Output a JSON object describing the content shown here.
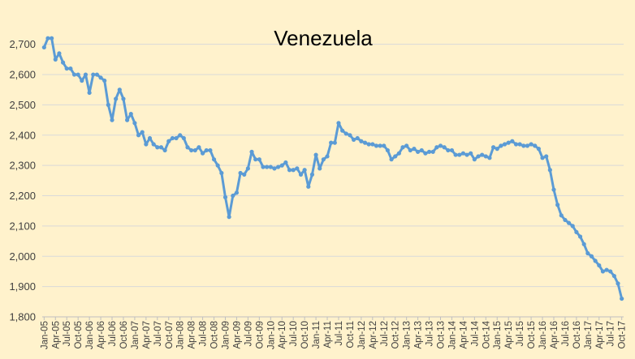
{
  "chart_data": {
    "type": "line",
    "title": "Venezuela",
    "xlabel": "",
    "ylabel": "",
    "ylim": [
      1800,
      2750
    ],
    "yticks": [
      1800,
      1900,
      2000,
      2100,
      2200,
      2300,
      2400,
      2500,
      2600,
      2700
    ],
    "ytick_labels": [
      "1,800",
      "1,900",
      "2,000",
      "2,100",
      "2,200",
      "2,300",
      "2,400",
      "2,500",
      "2,600",
      "2,700"
    ],
    "grid": "horizontal",
    "legend": "none",
    "color": "#5B9BD5",
    "marker": "circle",
    "xtick_labels": [
      "Jan-05",
      "Apr-05",
      "Jul-05",
      "Oct-05",
      "Jan-06",
      "Apr-06",
      "Jul-06",
      "Oct-06",
      "Jan-07",
      "Apr-07",
      "Jul-07",
      "Oct-07",
      "Jan-08",
      "Apr-08",
      "Jul-08",
      "Oct-08",
      "Jan-09",
      "Apr-09",
      "Jul-09",
      "Oct-09",
      "Jan-10",
      "Apr-10",
      "Jul-10",
      "Oct-10",
      "Jan-11",
      "Apr-11",
      "Jul-11",
      "Oct-11",
      "Jan-12",
      "Apr-12",
      "Jul-12",
      "Oct-12",
      "Jan-13",
      "Apr-13",
      "Jul-13",
      "Oct-13",
      "Jan-14",
      "Apr-14",
      "Jul-14",
      "Oct-14",
      "Jan-15",
      "Apr-15",
      "Jul-15",
      "Oct-15",
      "Jan-16",
      "Apr-16",
      "Jul-16",
      "Oct-16",
      "Jan-17",
      "Apr-17",
      "Jul-17",
      "Oct-17"
    ],
    "x_start": "2005-01",
    "x_end": "2017-10",
    "series": [
      {
        "values": [
          2690,
          2720,
          2720,
          2650,
          2670,
          2640,
          2620,
          2620,
          2600,
          2600,
          2580,
          2600,
          2540,
          2600,
          2600,
          2590,
          2580,
          2500,
          2450,
          2520,
          2550,
          2520,
          2450,
          2470,
          2440,
          2400,
          2410,
          2370,
          2390,
          2370,
          2360,
          2360,
          2350,
          2380,
          2390,
          2390,
          2400,
          2390,
          2360,
          2350,
          2350,
          2360,
          2340,
          2350,
          2350,
          2320,
          2300,
          2275,
          2195,
          2130,
          2200,
          2210,
          2275,
          2270,
          2290,
          2345,
          2320,
          2320,
          2295,
          2295,
          2295,
          2290,
          2295,
          2300,
          2310,
          2285,
          2285,
          2290,
          2270,
          2285,
          2230,
          2270,
          2335,
          2290,
          2320,
          2330,
          2375,
          2375,
          2440,
          2415,
          2405,
          2400,
          2385,
          2390,
          2380,
          2375,
          2370,
          2370,
          2365,
          2365,
          2365,
          2350,
          2320,
          2330,
          2340,
          2360,
          2365,
          2350,
          2355,
          2345,
          2350,
          2340,
          2345,
          2345,
          2360,
          2365,
          2360,
          2350,
          2350,
          2335,
          2335,
          2340,
          2335,
          2340,
          2320,
          2330,
          2335,
          2330,
          2325,
          2360,
          2355,
          2365,
          2370,
          2375,
          2380,
          2370,
          2370,
          2365,
          2365,
          2370,
          2365,
          2355,
          2325,
          2330,
          2285,
          2220,
          2170,
          2135,
          2120,
          2110,
          2100,
          2080,
          2065,
          2040,
          2010,
          2000,
          1985,
          1970,
          1950,
          1955,
          1950,
          1935,
          1910,
          1860
        ]
      }
    ]
  }
}
